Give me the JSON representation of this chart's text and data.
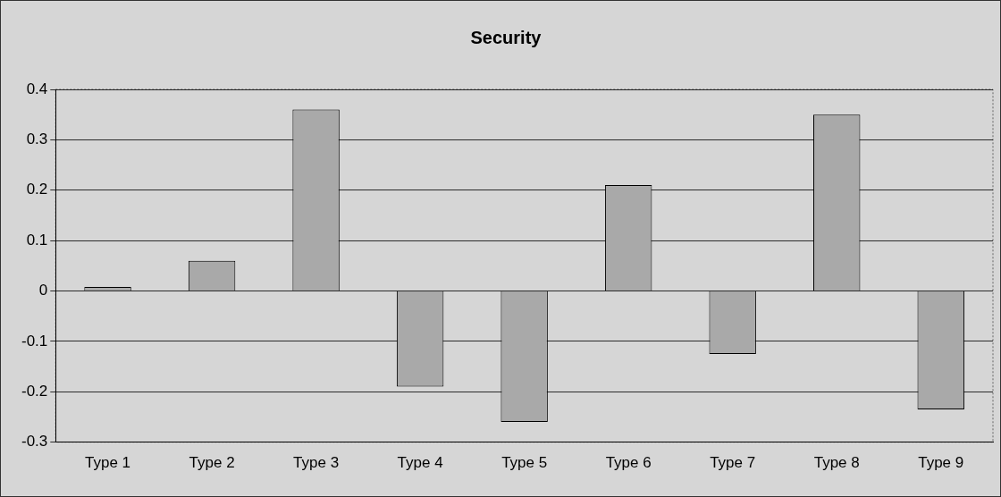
{
  "chart_data": {
    "type": "bar",
    "title": "Security",
    "categories": [
      "Type 1",
      "Type 2",
      "Type 3",
      "Type 4",
      "Type 5",
      "Type 6",
      "Type 7",
      "Type 8",
      "Type 9"
    ],
    "values": [
      0.008,
      0.06,
      0.36,
      -0.19,
      -0.26,
      0.21,
      -0.125,
      0.35,
      -0.235
    ],
    "color": "#a9a9a9",
    "ylim": [
      -0.3,
      0.4
    ],
    "yticks": [
      -0.3,
      -0.2,
      -0.1,
      0,
      0.1,
      0.2,
      0.3,
      0.4
    ],
    "grid": "y",
    "legend": false
  }
}
